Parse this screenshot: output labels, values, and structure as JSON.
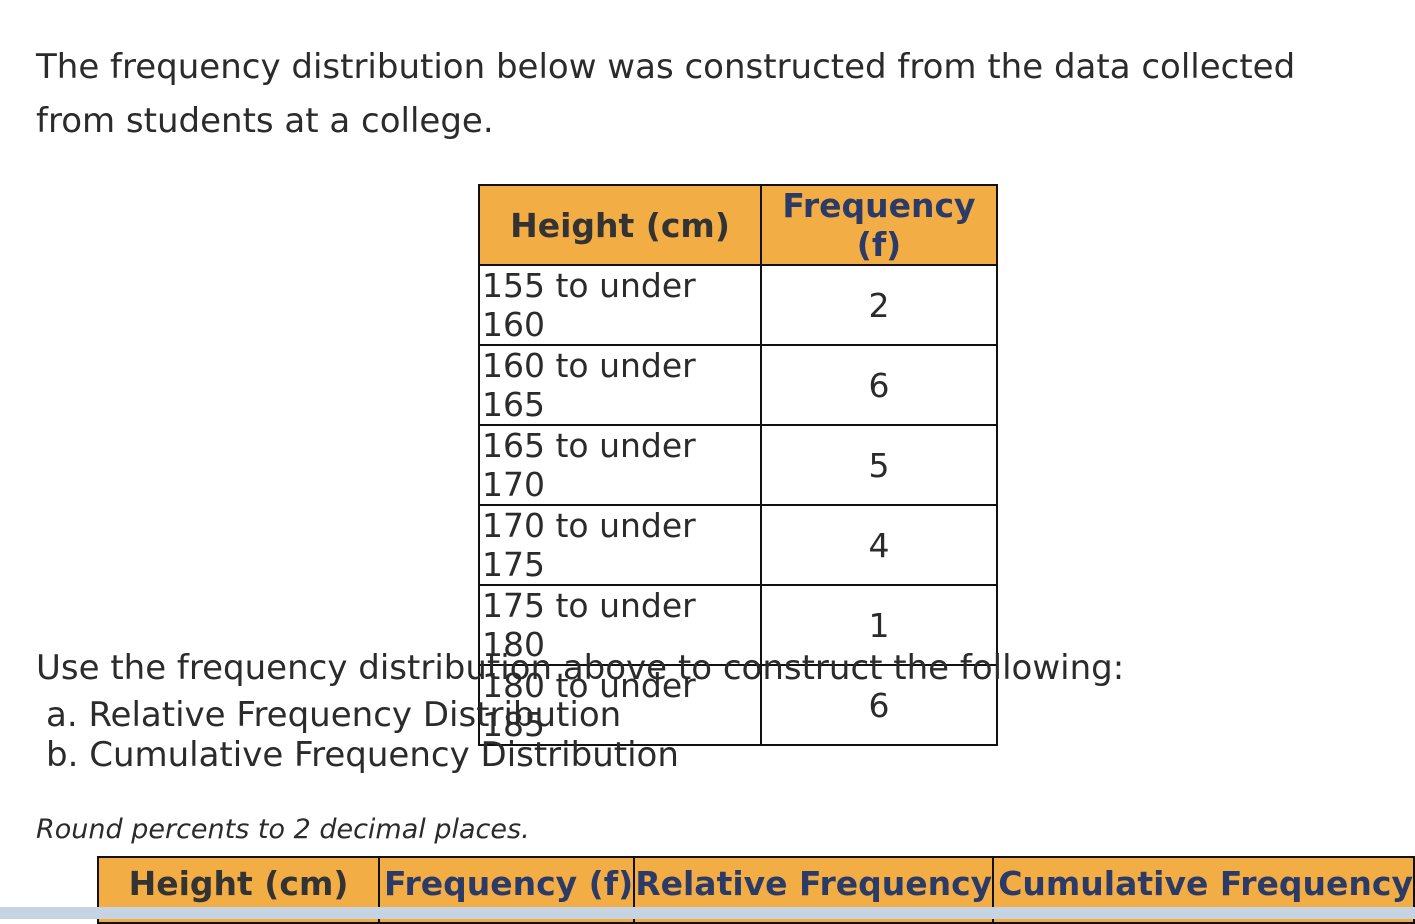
{
  "intro": "The frequency distribution below was constructed from the data collected from students at a college.",
  "table": {
    "headers": [
      "Height (cm)",
      "Frequency (f)"
    ],
    "rows": [
      {
        "range": "155 to under 160",
        "freq": "2"
      },
      {
        "range": "160 to under 165",
        "freq": "6"
      },
      {
        "range": "165 to under 170",
        "freq": "5"
      },
      {
        "range": "170 to under 175",
        "freq": "4"
      },
      {
        "range": "175 to under 180",
        "freq": "1"
      },
      {
        "range": "180 to under 185",
        "freq": "6"
      }
    ]
  },
  "instructions": "Use the frequency distribution above to construct the following:",
  "items": [
    "a. Relative Frequency Distribution",
    "b. Cumulative Frequency Distribution"
  ],
  "note": "Round percents to 2 decimal places.",
  "answer_table": {
    "headers": [
      "Height (cm)",
      "Frequency (f)",
      "Relative Frequency",
      "Cumulative Frequency"
    ]
  },
  "colors": {
    "header_fill": "#f3ad45",
    "border": "#111111",
    "text": "#2b2b2b"
  }
}
